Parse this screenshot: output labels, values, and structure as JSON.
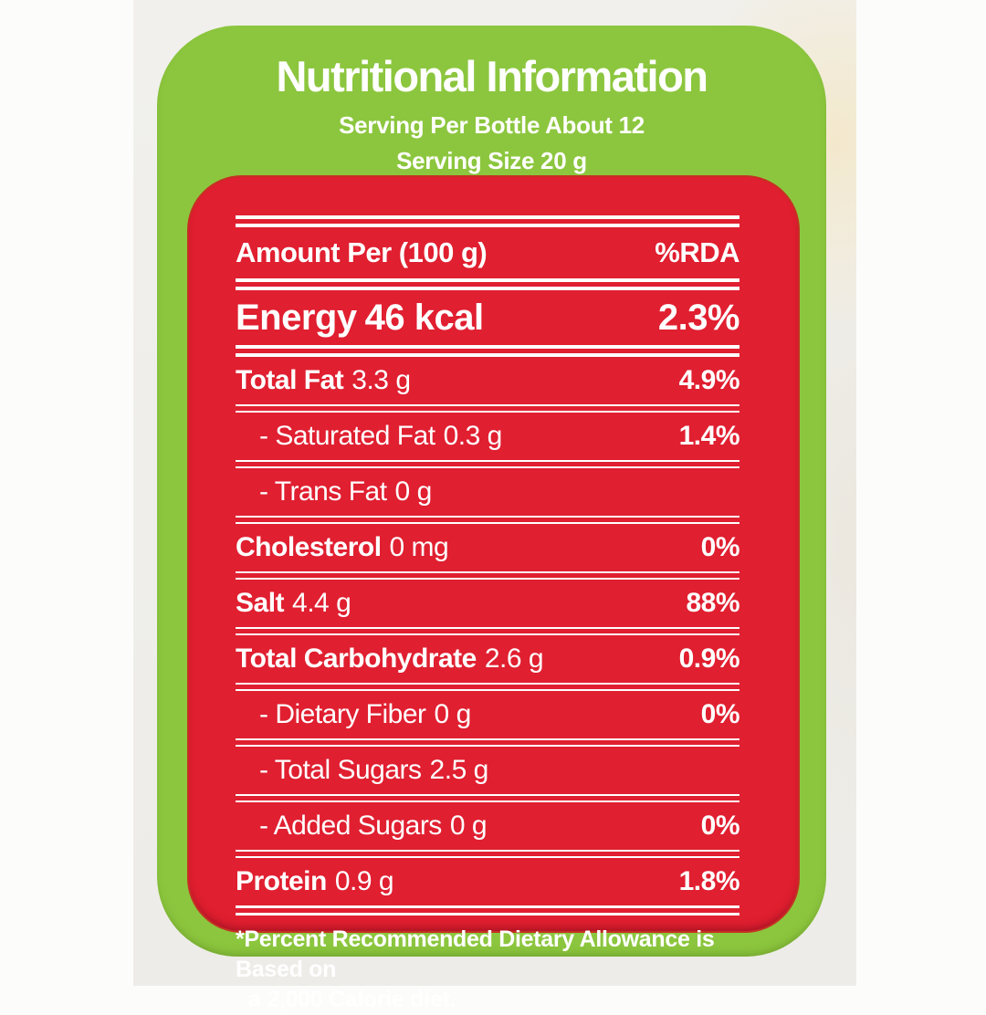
{
  "header": {
    "title": "Nutritional Information",
    "serving_line1": "Serving Per Bottle About 12",
    "serving_line2": "Serving Size 20 g"
  },
  "table": {
    "col1_header": "Amount Per (100 g)",
    "col2_header": "%RDA",
    "rows": [
      {
        "name": "Energy",
        "amount": "46 kcal",
        "rda": "2.3%"
      },
      {
        "name": "Total Fat",
        "amount": "3.3 g",
        "rda": "4.9%"
      },
      {
        "name": "- Saturated Fat",
        "amount": "0.3 g",
        "rda": "1.4%"
      },
      {
        "name": "- Trans Fat",
        "amount": "0 g",
        "rda": ""
      },
      {
        "name": "Cholesterol",
        "amount": "0 mg",
        "rda": "0%"
      },
      {
        "name": "Salt",
        "amount": "4.4 g",
        "rda": "88%"
      },
      {
        "name": "Total Carbohydrate",
        "amount": "2.6 g",
        "rda": "0.9%"
      },
      {
        "name": "- Dietary Fiber",
        "amount": "0 g",
        "rda": "0%"
      },
      {
        "name": "- Total Sugars",
        "amount": "2.5 g",
        "rda": ""
      },
      {
        "name": "- Added Sugars",
        "amount": "0 g",
        "rda": "0%"
      },
      {
        "name": "Protein",
        "amount": "0.9 g",
        "rda": "1.8%"
      }
    ],
    "footnote_line1": "*Percent Recommended Dietary Allowance is Based on",
    "footnote_line2": "a 2,000 Calorie diet."
  },
  "colors": {
    "green": "#8cc63e",
    "red": "#e01f30",
    "label_text": "#ffffff",
    "background": "#f1f0ec"
  }
}
